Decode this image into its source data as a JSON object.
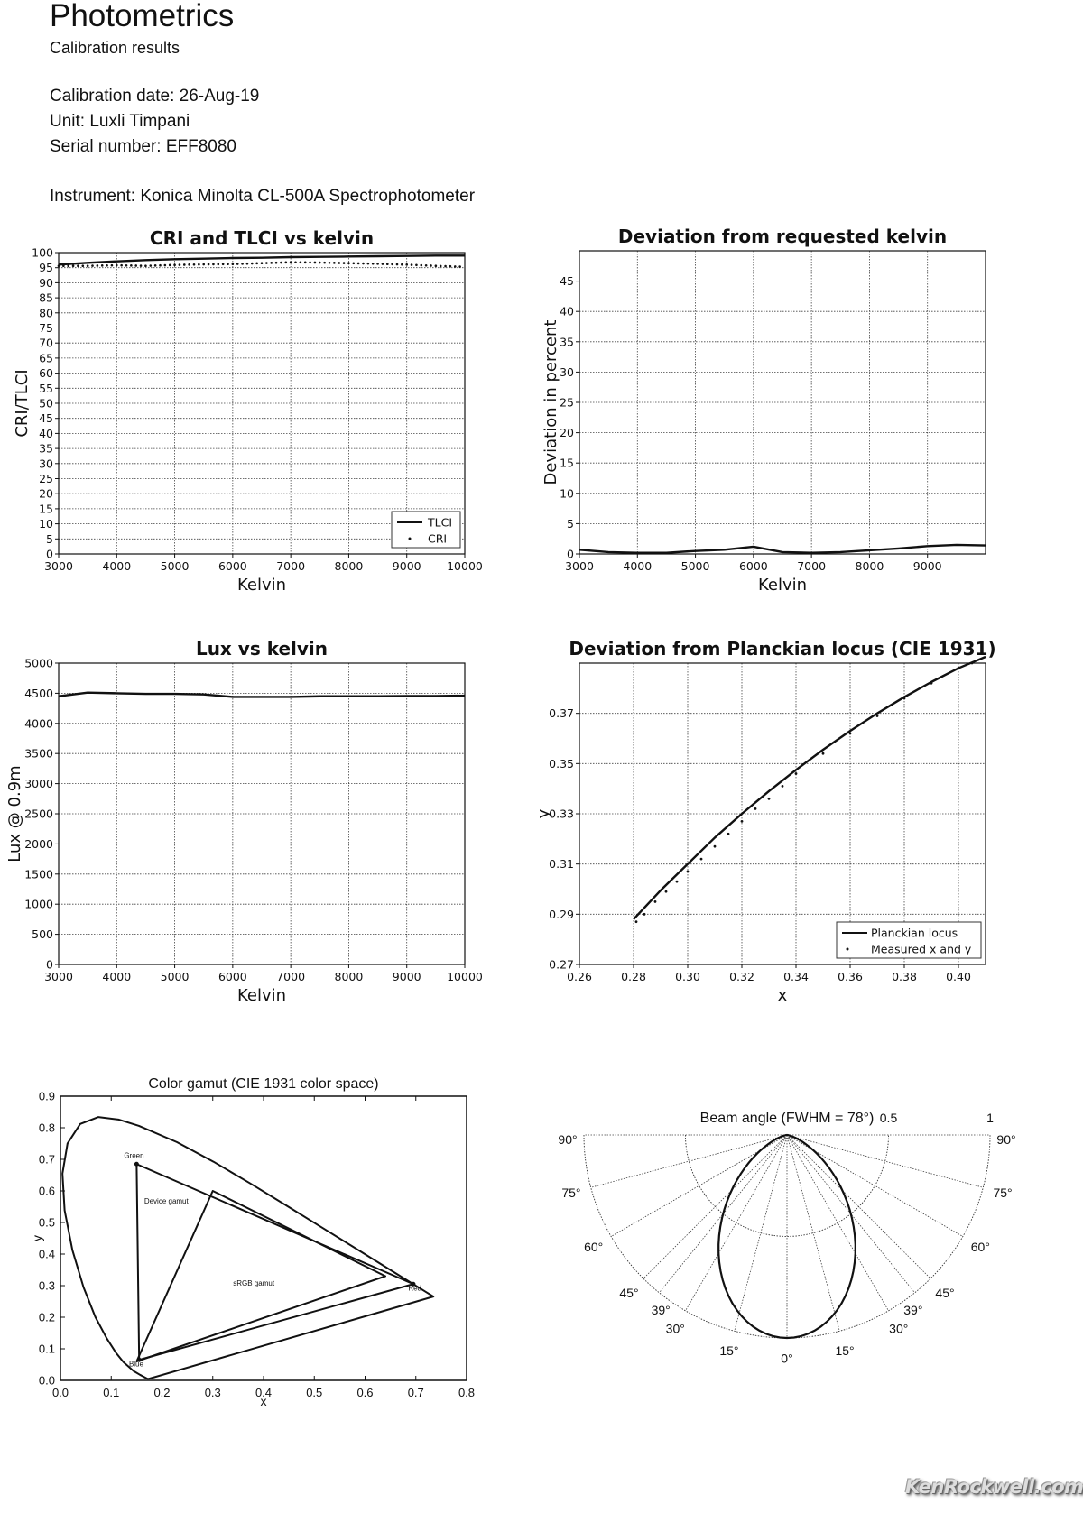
{
  "header": {
    "title": "Photometrics",
    "subtitle": "Calibration results",
    "calibration_date": "Calibration date: 26-Aug-19",
    "unit": "Unit: Luxli Timpani",
    "serial": "Serial number: EFF8080",
    "instrument": "Instrument: Konica Minolta CL-500A Spectrophotometer"
  },
  "watermark": "KenRockwell.com",
  "chart_data": [
    {
      "type": "line",
      "title": "CRI and TLCI vs kelvin",
      "xlabel": "Kelvin",
      "ylabel": "CRI/TLCI",
      "xlim": [
        3000,
        10000
      ],
      "ylim": [
        0,
        100
      ],
      "xticks": [
        3000,
        4000,
        5000,
        6000,
        7000,
        8000,
        9000,
        10000
      ],
      "yticks": [
        0,
        5,
        10,
        15,
        20,
        25,
        30,
        35,
        40,
        45,
        50,
        55,
        60,
        65,
        70,
        75,
        80,
        85,
        90,
        95,
        100
      ],
      "grid": true,
      "legend": "bottom-right",
      "x": [
        3000,
        3500,
        4000,
        4500,
        5000,
        5500,
        6000,
        6500,
        7000,
        7500,
        8000,
        8500,
        9000,
        9500,
        10000
      ],
      "series": [
        {
          "name": "TLCI",
          "style": "line",
          "values": [
            96,
            96.6,
            97.1,
            97.5,
            97.8,
            98,
            98.2,
            98.3,
            98.5,
            98.6,
            98.7,
            98.8,
            98.9,
            99,
            99
          ]
        },
        {
          "name": "CRI",
          "style": "dots",
          "values": [
            95.6,
            95.6,
            95.8,
            95.6,
            95.9,
            96.1,
            96.2,
            96.5,
            96.8,
            96.7,
            96.5,
            96.3,
            96,
            95.6,
            95.3
          ]
        }
      ]
    },
    {
      "type": "line",
      "title": "Deviation from requested kelvin",
      "xlabel": "Kelvin",
      "ylabel": "Deviation in percent",
      "xlim": [
        3000,
        10000
      ],
      "ylim": [
        0,
        50
      ],
      "xticks": [
        3000,
        4000,
        5000,
        6000,
        7000,
        8000,
        9000
      ],
      "yticks": [
        0,
        5,
        10,
        15,
        20,
        25,
        30,
        35,
        40,
        45
      ],
      "grid": true,
      "x": [
        3000,
        3500,
        4000,
        4500,
        5000,
        5500,
        6000,
        6500,
        7000,
        7500,
        8000,
        8500,
        9000,
        9500,
        10000
      ],
      "series": [
        {
          "name": "Deviation",
          "style": "line",
          "values": [
            0.7,
            0.3,
            0.2,
            0.2,
            0.5,
            0.7,
            1.2,
            0.3,
            0.2,
            0.3,
            0.6,
            0.9,
            1.3,
            1.5,
            1.4
          ]
        }
      ]
    },
    {
      "type": "line",
      "title": "Lux vs kelvin",
      "xlabel": "Kelvin",
      "ylabel": "Lux @ 0.9m",
      "xlim": [
        3000,
        10000
      ],
      "ylim": [
        0,
        5000
      ],
      "xticks": [
        3000,
        4000,
        5000,
        6000,
        7000,
        8000,
        9000,
        10000
      ],
      "yticks": [
        0,
        500,
        1000,
        1500,
        2000,
        2500,
        3000,
        3500,
        4000,
        4500,
        5000
      ],
      "grid": true,
      "x": [
        3000,
        3500,
        4000,
        4500,
        5000,
        5500,
        6000,
        6500,
        7000,
        7500,
        8000,
        8500,
        9000,
        9500,
        10000
      ],
      "series": [
        {
          "name": "Lux",
          "style": "line",
          "values": [
            4450,
            4510,
            4500,
            4490,
            4490,
            4480,
            4440,
            4440,
            4440,
            4450,
            4450,
            4450,
            4455,
            4455,
            4460
          ]
        }
      ]
    },
    {
      "type": "scatter",
      "title": "Deviation from Planckian locus (CIE 1931)",
      "xlabel": "x",
      "ylabel": "y",
      "xlim": [
        0.26,
        0.41
      ],
      "ylim": [
        0.27,
        0.39
      ],
      "xticks": [
        0.26,
        0.28,
        0.3,
        0.32,
        0.34,
        0.36,
        0.38,
        0.4
      ],
      "yticks": [
        0.27,
        0.29,
        0.31,
        0.33,
        0.35,
        0.37
      ],
      "grid": true,
      "legend": "bottom-right",
      "series": [
        {
          "name": "Planckian locus",
          "style": "line",
          "x": [
            0.28,
            0.29,
            0.3,
            0.31,
            0.32,
            0.33,
            0.34,
            0.35,
            0.36,
            0.37,
            0.38,
            0.39,
            0.4,
            0.41
          ],
          "values": [
            0.288,
            0.2995,
            0.31,
            0.3205,
            0.33,
            0.339,
            0.3475,
            0.3555,
            0.363,
            0.37,
            0.3765,
            0.3825,
            0.388,
            0.3925
          ]
        },
        {
          "name": "Measured x and y",
          "style": "dots",
          "x": [
            0.281,
            0.284,
            0.288,
            0.292,
            0.296,
            0.3,
            0.305,
            0.31,
            0.315,
            0.32,
            0.325,
            0.33,
            0.335,
            0.34,
            0.35,
            0.36,
            0.37,
            0.38,
            0.39,
            0.4,
            0.405
          ],
          "values": [
            0.287,
            0.29,
            0.295,
            0.299,
            0.303,
            0.307,
            0.312,
            0.317,
            0.322,
            0.327,
            0.332,
            0.336,
            0.341,
            0.346,
            0.354,
            0.362,
            0.369,
            0.376,
            0.382,
            0.388,
            0.39
          ]
        }
      ]
    },
    {
      "type": "scatter",
      "title": "Color gamut (CIE 1931 color space)",
      "xlabel": "x",
      "ylabel": "y",
      "xlim": [
        0,
        0.8
      ],
      "ylim": [
        0,
        0.9
      ],
      "xticks": [
        0,
        0.1,
        0.2,
        0.3,
        0.4,
        0.5,
        0.6,
        0.7,
        0.8
      ],
      "yticks": [
        0,
        0.1,
        0.2,
        0.3,
        0.4,
        0.5,
        0.6,
        0.7,
        0.8,
        0.9
      ],
      "grid": false,
      "series": [
        {
          "name": "Spectral locus",
          "style": "closed",
          "x": [
            0.1741,
            0.1736,
            0.1714,
            0.1566,
            0.144,
            0.1241,
            0.1096,
            0.0913,
            0.0687,
            0.0454,
            0.0235,
            0.0082,
            0.0039,
            0.0139,
            0.0389,
            0.0743,
            0.1142,
            0.1547,
            0.2296,
            0.3016,
            0.3731,
            0.4441,
            0.5125,
            0.5752,
            0.627,
            0.6915,
            0.719,
            0.7347
          ],
          "values": [
            0.005,
            0.005,
            0.0051,
            0.0177,
            0.0297,
            0.0578,
            0.0868,
            0.1327,
            0.2007,
            0.295,
            0.4127,
            0.5384,
            0.6548,
            0.7502,
            0.812,
            0.8338,
            0.8262,
            0.8059,
            0.7543,
            0.6923,
            0.6245,
            0.5547,
            0.4866,
            0.4242,
            0.3725,
            0.3083,
            0.2809,
            0.2653
          ]
        },
        {
          "name": "Device gamut",
          "style": "closed",
          "x": [
            0.15,
            0.695,
            0.155
          ],
          "values": [
            0.685,
            0.305,
            0.065
          ],
          "points": [
            "Green",
            "Red",
            "Blue"
          ]
        },
        {
          "name": "sRGB gamut",
          "style": "closed",
          "x": [
            0.3,
            0.64,
            0.15
          ],
          "values": [
            0.6,
            0.33,
            0.06
          ]
        }
      ],
      "annotations": [
        {
          "text": "Green",
          "x": 0.125,
          "y": 0.705
        },
        {
          "text": "Red",
          "x": 0.685,
          "y": 0.285
        },
        {
          "text": "Blue",
          "x": 0.135,
          "y": 0.045
        },
        {
          "text": "Device gamut",
          "x": 0.165,
          "y": 0.56
        },
        {
          "text": "sRGB gamut",
          "x": 0.34,
          "y": 0.3
        }
      ]
    },
    {
      "type": "polar",
      "title": "Beam angle (FWHM = 78°)",
      "fwhm_deg": 78,
      "rlim": [
        0,
        1
      ],
      "rticks": [
        "0.5",
        "1"
      ],
      "angle_ticks_deg": [
        0,
        15,
        30,
        39,
        45,
        60,
        75,
        90
      ],
      "angle_labels": [
        "0°",
        "15°",
        "30°",
        "39°",
        "45°",
        "60°",
        "75°",
        "90°"
      ],
      "series": [
        {
          "name": "Relative intensity",
          "style": "line",
          "angles_deg": [
            -90,
            -80,
            -70,
            -60,
            -50,
            -45,
            -39,
            -30,
            -20,
            -10,
            0,
            10,
            20,
            30,
            39,
            45,
            50,
            60,
            70,
            80,
            90
          ],
          "values": [
            0,
            0.008,
            0.052,
            0.149,
            0.297,
            0.385,
            0.5,
            0.673,
            0.843,
            0.958,
            1,
            0.958,
            0.843,
            0.673,
            0.5,
            0.385,
            0.297,
            0.149,
            0.052,
            0.008,
            0
          ]
        }
      ]
    }
  ]
}
